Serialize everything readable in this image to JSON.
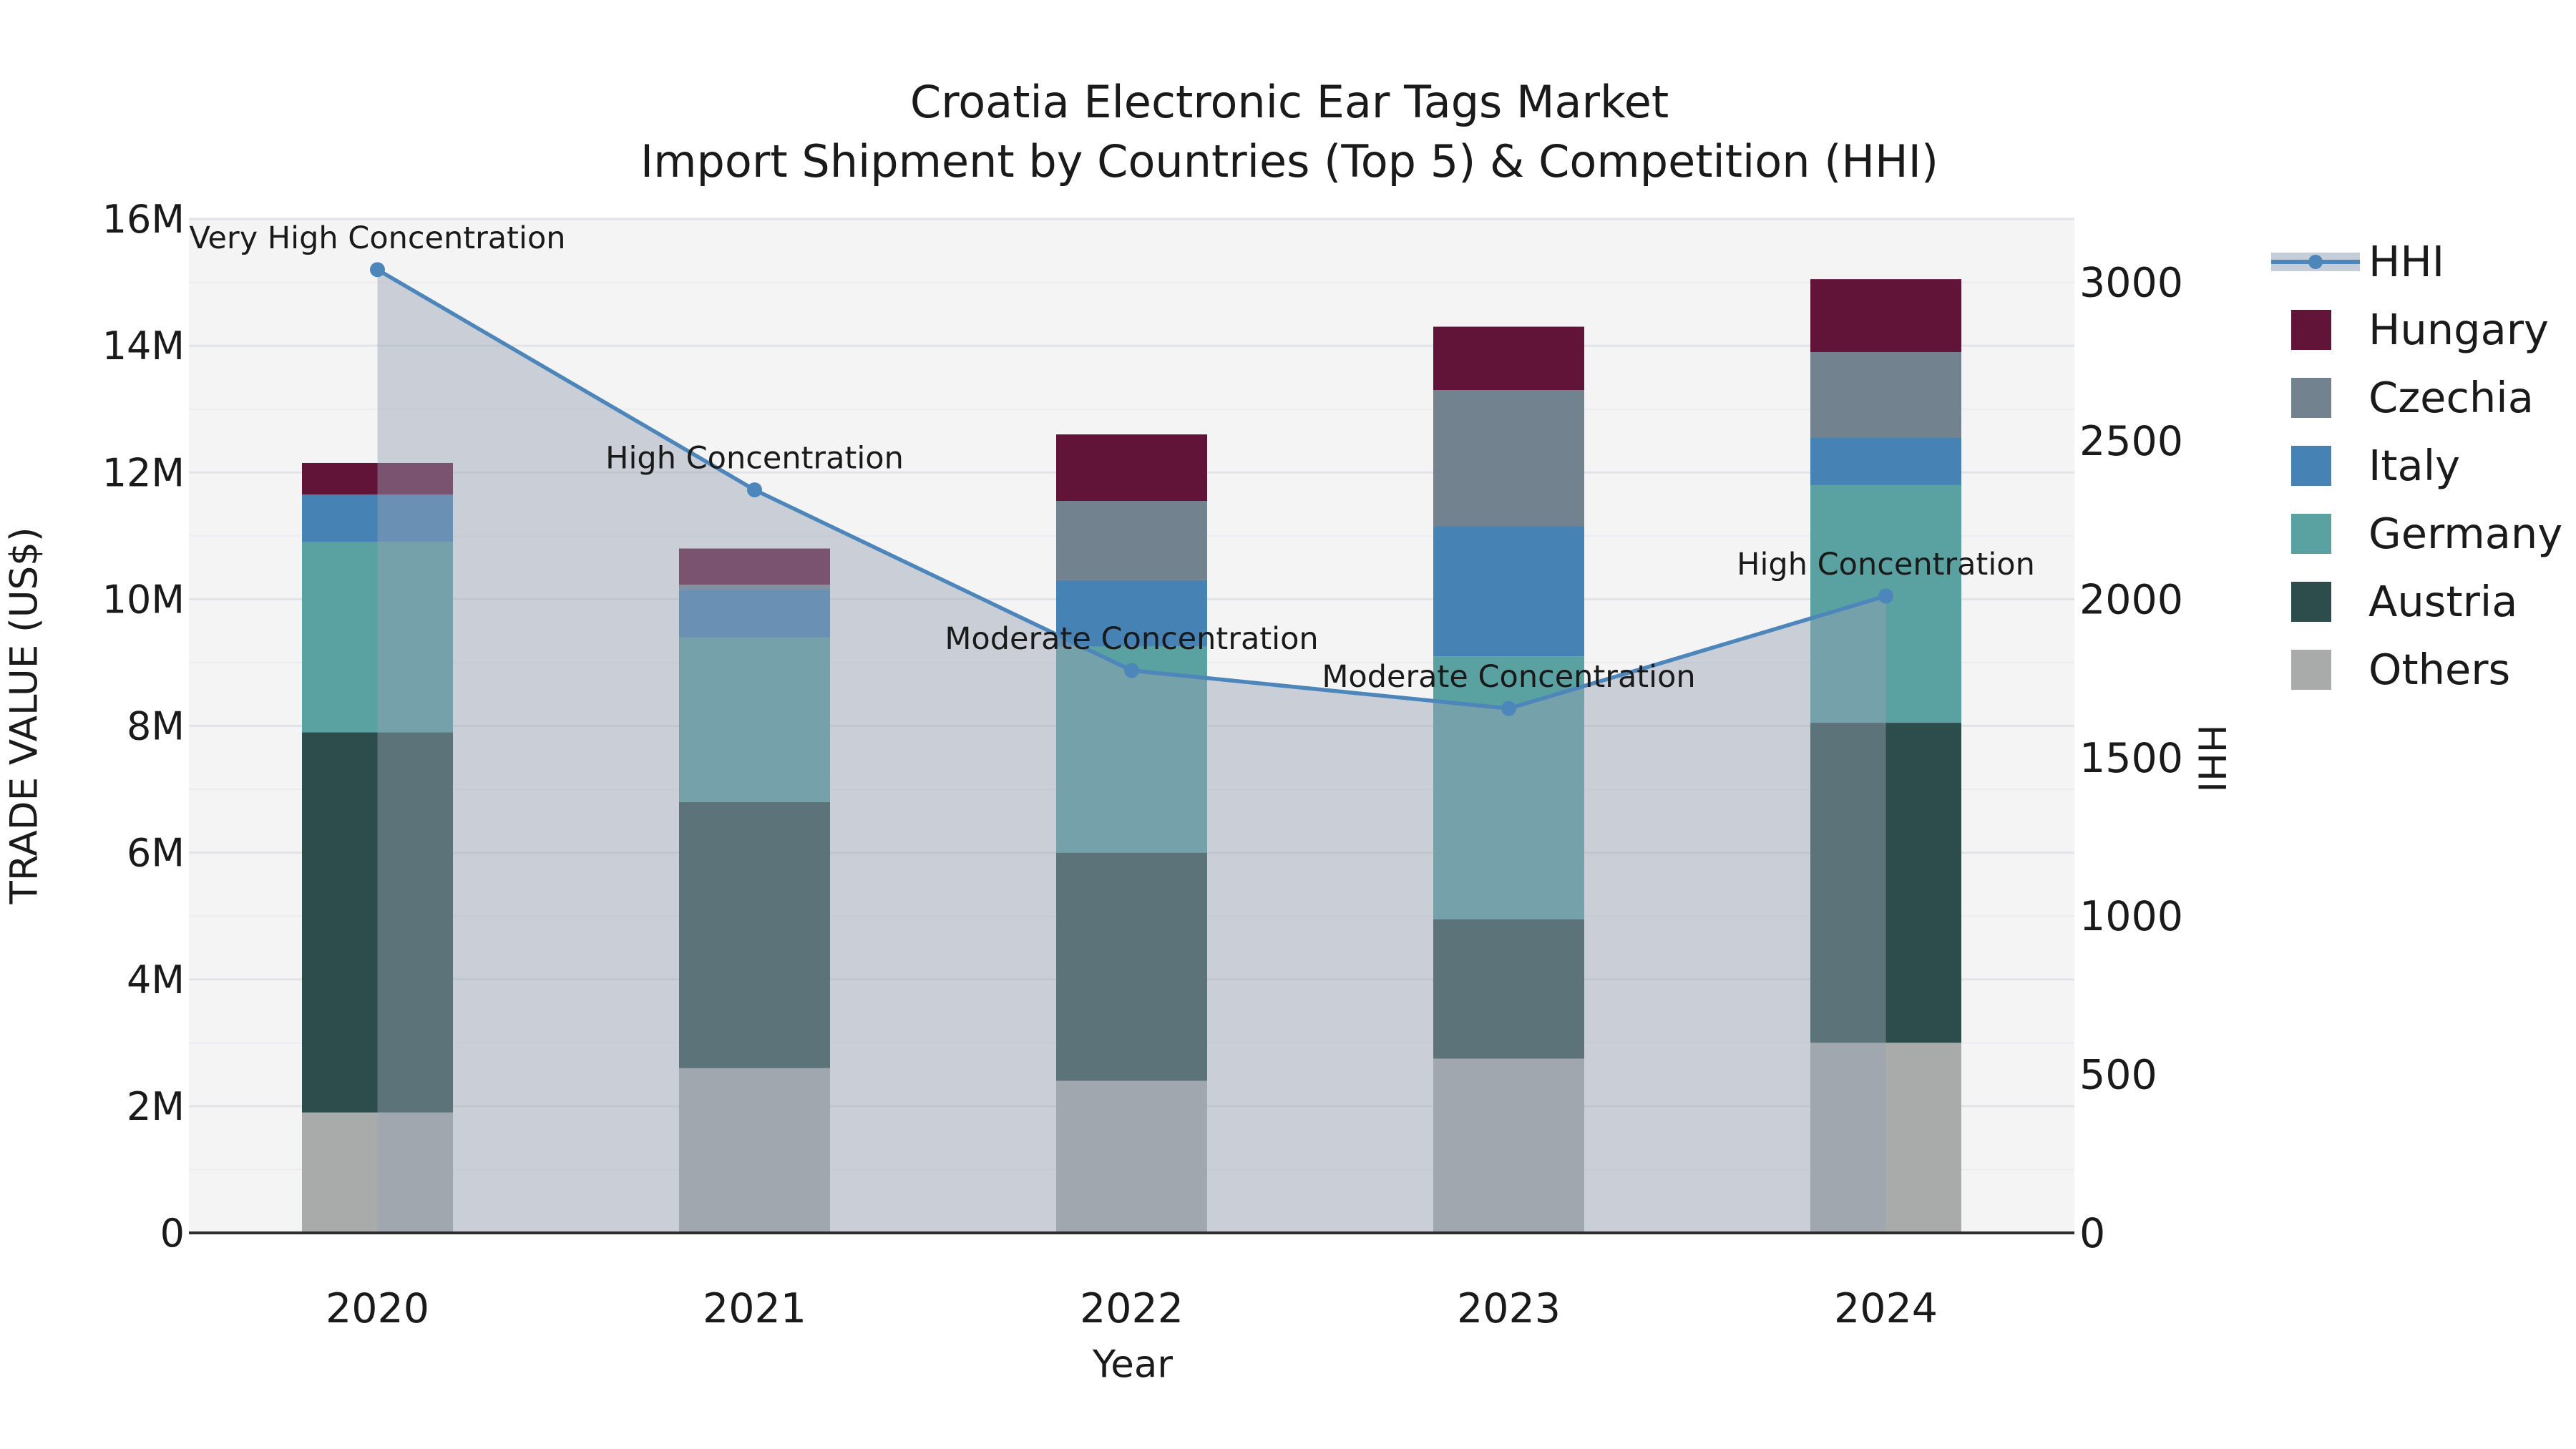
{
  "page": {
    "background": "#ffffff"
  },
  "title": {
    "line1": "Croatia Electronic Ear Tags Market",
    "line2": "Import Shipment by Countries (Top 5) & Competition (HHI)"
  },
  "chart_data": {
    "type": "combo_stacked_bar_line",
    "title": "Croatia Electronic Ear Tags Market",
    "subtitle": "Import Shipment by Countries (Top 5) & Competition (HHI)",
    "xlabel": "Year",
    "ylabel_left": "TRADE VALUE (US$)",
    "ylabel_right": "HHI",
    "unit": "US$ millions",
    "categories": [
      "2020",
      "2021",
      "2022",
      "2023",
      "2024"
    ],
    "stack_order_bottom_to_top": [
      "Others",
      "Austria",
      "Germany",
      "Italy",
      "Czechia",
      "Hungary"
    ],
    "series": [
      {
        "name": "Others",
        "color": "#a9abaa",
        "values_musd": [
          1.9,
          2.6,
          2.4,
          2.75,
          3.0
        ]
      },
      {
        "name": "Austria",
        "color": "#2d4d4c",
        "values_musd": [
          6.0,
          4.2,
          3.6,
          2.2,
          5.05
        ]
      },
      {
        "name": "Germany",
        "color": "#5aa1a2",
        "values_musd": [
          3.0,
          2.6,
          3.25,
          4.15,
          3.75
        ]
      },
      {
        "name": "Italy",
        "color": "#4682b4",
        "values_musd": [
          0.75,
          0.75,
          1.05,
          2.05,
          0.75
        ]
      },
      {
        "name": "Czechia",
        "color": "#72828f",
        "values_musd": [
          0.0,
          0.08,
          1.25,
          2.15,
          1.35
        ]
      },
      {
        "name": "Hungary",
        "color": "#611338",
        "values_musd": [
          0.5,
          0.57,
          1.05,
          1.0,
          1.15
        ]
      }
    ],
    "totals_musd": [
      12.15,
      10.8,
      12.6,
      14.3,
      15.05
    ],
    "line_series": {
      "name": "HHI",
      "color": "#4d86ba",
      "area_fill": "rgba(150,162,180,0.45)",
      "values": [
        3040,
        2345,
        1775,
        1655,
        2010
      ],
      "annotations": [
        "Very High Concentration",
        "High Concentration",
        "Moderate Concentration",
        "Moderate Concentration",
        "High Concentration"
      ]
    },
    "y_axis_left": {
      "tick_labels": [
        "0",
        "2M",
        "4M",
        "6M",
        "8M",
        "10M",
        "12M",
        "14M",
        "16M"
      ],
      "tick_step_musd": 2,
      "ylim_musd": [
        0,
        16
      ],
      "grid": true
    },
    "y_axis_right": {
      "tick_labels": [
        "0",
        "500",
        "1000",
        "1500",
        "2000",
        "2500",
        "3000"
      ],
      "tick_step": 500,
      "ylim": [
        0,
        3200
      ]
    },
    "legend": {
      "position": "right",
      "items": [
        "HHI",
        "Hungary",
        "Czechia",
        "Italy",
        "Germany",
        "Austria",
        "Others"
      ]
    },
    "plot_background": "#f4f4f5",
    "grid_color_major": "#e2e3e8",
    "grid_color_minor": "#ececf0",
    "axis_line_color": "#2e2e2e",
    "text_color": "#1a1a1a",
    "legend_band_color": "#c5cdd8"
  }
}
